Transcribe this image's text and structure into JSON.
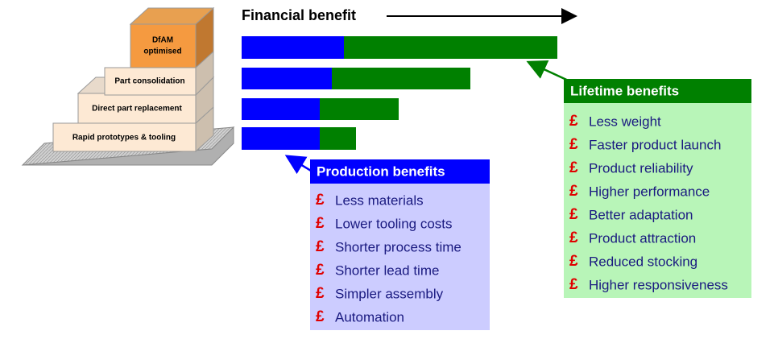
{
  "header": {
    "title": "Financial benefit"
  },
  "pyramid": {
    "levels": [
      "Rapid prototypes & tooling",
      "Direct part replacement",
      "Part consolidation",
      [
        "DfAM",
        "optimised"
      ]
    ]
  },
  "production": {
    "title": "Production benefits",
    "bullet": "£",
    "items": [
      "Less materials",
      "Lower tooling costs",
      "Shorter process time",
      "Shorter lead time",
      "Simpler assembly",
      "Automation"
    ]
  },
  "lifetime": {
    "title": "Lifetime benefits",
    "bullet": "£",
    "items": [
      "Less weight",
      "Faster product launch",
      "Product reliability",
      "Higher performance",
      "Better adaptation",
      "Product attraction",
      "Reduced stocking",
      "Higher responsiveness"
    ]
  }
}
